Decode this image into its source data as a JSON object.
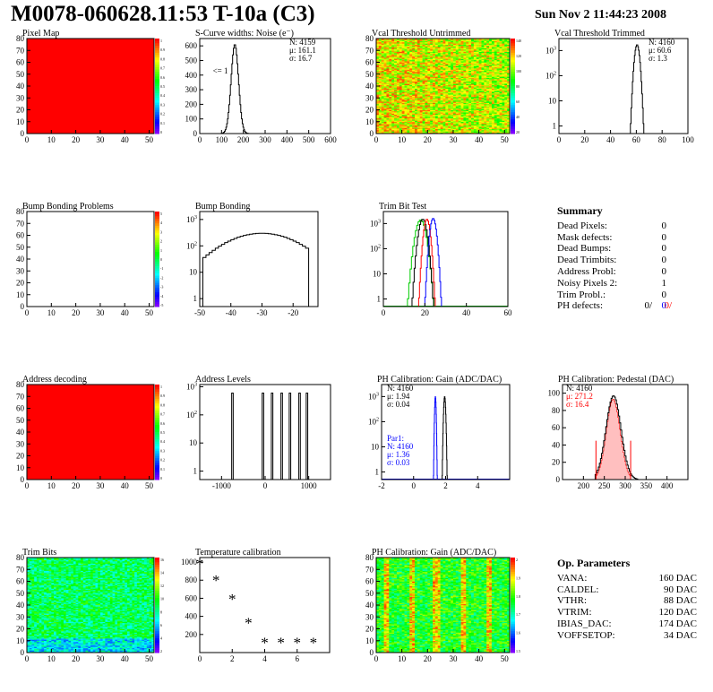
{
  "header": {
    "title": "M0078-060628.11:53 T-10a (C3)",
    "date": "Sun Nov  2 11:44:23 2008"
  },
  "colors": {
    "red": "#ff0000",
    "blue": "#0000ff",
    "green": "#00cc00",
    "black": "#000000"
  },
  "summary": {
    "title": "Summary",
    "rows": [
      {
        "label": "Dead Pixels:",
        "value": "0"
      },
      {
        "label": "Mask defects:",
        "value": "0"
      },
      {
        "label": "Dead Bumps:",
        "value": "0"
      },
      {
        "label": "Dead Trimbits:",
        "value": "0"
      },
      {
        "label": "Address Probl:",
        "value": "0"
      },
      {
        "label": "Noisy Pixels 2:",
        "value": "1"
      },
      {
        "label": "Trim Probl.:",
        "value": "0"
      }
    ],
    "ph": {
      "label": "PH defects:",
      "v1": "0/",
      "v2": "0/",
      "v3": "0"
    }
  },
  "op_params": {
    "title": "Op. Parameters",
    "rows": [
      {
        "label": "VANA:",
        "value": "160 DAC"
      },
      {
        "label": "CALDEL:",
        "value": "90 DAC"
      },
      {
        "label": "VTHR:",
        "value": "88 DAC"
      },
      {
        "label": "VTRIM:",
        "value": "120 DAC"
      },
      {
        "label": "IBIAS_DAC:",
        "value": "174 DAC"
      },
      {
        "label": "VOFFSETOP:",
        "value": "34 DAC"
      }
    ]
  },
  "chart_data": [
    {
      "id": "pixel-map",
      "type": "heatmap",
      "title": "Pixel Map",
      "xlim": [
        0,
        52
      ],
      "ylim": [
        0,
        80
      ],
      "fill": "uniform-red",
      "xticks": [
        0,
        10,
        20,
        30,
        40,
        50
      ],
      "yticks": [
        0,
        10,
        20,
        30,
        40,
        50,
        60,
        70,
        80
      ],
      "zticks": [
        "1",
        "0.9",
        "0.8",
        "0.7",
        "0.6",
        "0.5",
        "0.4",
        "0.3",
        "0.2",
        "0.1",
        "0"
      ],
      "palette": "rainbow"
    },
    {
      "id": "scurve",
      "type": "histogram",
      "title": "S-Curve widths: Noise (e⁻)",
      "xlim": [
        0,
        600
      ],
      "ylim": [
        0,
        650
      ],
      "xticks": [
        0,
        100,
        200,
        300,
        400,
        500,
        600
      ],
      "yticks": [
        0,
        100,
        200,
        300,
        400,
        500,
        600
      ],
      "curves": [
        {
          "color": "black",
          "shape": "gauss",
          "mean": 161,
          "sigma": 17,
          "peak": 610
        }
      ],
      "stats": [
        {
          "text": "N: 4159"
        },
        {
          "text": "μ: 161.1"
        },
        {
          "text": "σ: 16.7"
        }
      ],
      "annotations": [
        {
          "text": "<= 1",
          "x": 60,
          "y": 410
        }
      ]
    },
    {
      "id": "vcal-untrimmed",
      "type": "heatmap",
      "title": "Vcal Threshold Untrimmed",
      "xlim": [
        0,
        52
      ],
      "ylim": [
        0,
        80
      ],
      "fill": "noisy-orange",
      "xticks": [
        0,
        10,
        20,
        30,
        40,
        50
      ],
      "yticks": [
        0,
        10,
        20,
        30,
        40,
        50,
        60,
        70,
        80
      ],
      "zticks": [
        "140",
        "120",
        "100",
        "80",
        "60",
        "40",
        "20"
      ],
      "palette": "rainbow"
    },
    {
      "id": "vcal-trimmed",
      "type": "histogram",
      "log": true,
      "title": "Vcal Threshold Trimmed",
      "xlim": [
        0,
        100
      ],
      "ylim": [
        0.5,
        3000
      ],
      "xticks": [
        0,
        20,
        40,
        60,
        80,
        100
      ],
      "yticks": [
        1,
        10,
        100,
        1000
      ],
      "curves": [
        {
          "color": "black",
          "shape": "gauss",
          "mean": 60.6,
          "sigma": 1.3,
          "peak": 1700
        }
      ],
      "stats": [
        {
          "text": "N: 4160"
        },
        {
          "text": "μ: 60.6"
        },
        {
          "text": "σ:  1.3"
        }
      ]
    },
    {
      "id": "bump-problems",
      "type": "heatmap",
      "title": "Bump Bonding Problems",
      "xlim": [
        0,
        52
      ],
      "ylim": [
        0,
        80
      ],
      "fill": "empty",
      "xticks": [
        0,
        10,
        20,
        30,
        40,
        50
      ],
      "yticks": [
        0,
        10,
        20,
        30,
        40,
        50,
        60,
        70,
        80
      ],
      "zticks": [
        "5",
        "4",
        "3",
        "2",
        "1",
        "0",
        "-1",
        "-2",
        "-3",
        "-4",
        "-5"
      ],
      "palette": "rainbow"
    },
    {
      "id": "bump-bonding",
      "type": "histogram",
      "log": true,
      "title": "Bump Bonding",
      "xlim": [
        -50,
        -12
      ],
      "ylim": [
        0.5,
        2000
      ],
      "xticks": [
        -50,
        -40,
        -30,
        -20
      ],
      "yticks": [
        1,
        10,
        100,
        1000
      ],
      "curves": [
        {
          "color": "black",
          "shape": "bump",
          "mean": -30,
          "sigma": 9,
          "peak": 300,
          "lo": -49,
          "hi": -15
        }
      ]
    },
    {
      "id": "trim-bit",
      "type": "histogram",
      "log": true,
      "title": "Trim Bit Test",
      "xlim": [
        0,
        60
      ],
      "ylim": [
        0.5,
        3000
      ],
      "xticks": [
        0,
        20,
        40,
        60
      ],
      "yticks": [
        1,
        10,
        100,
        1000
      ],
      "curves": [
        {
          "color": "green",
          "shape": "gauss",
          "mean": 18,
          "sigma": 1.6,
          "peak": 1400,
          "baseline": true
        },
        {
          "color": "black",
          "shape": "gauss",
          "mean": 19,
          "sigma": 1.3,
          "peak": 1500
        },
        {
          "color": "red",
          "shape": "gauss",
          "mean": 21,
          "sigma": 1.0,
          "peak": 1500
        },
        {
          "color": "blue",
          "shape": "gauss",
          "mean": 24,
          "sigma": 1.0,
          "peak": 1600
        }
      ]
    },
    {
      "id": "address-decoding",
      "type": "heatmap",
      "title": "Address decoding",
      "xlim": [
        0,
        52
      ],
      "ylim": [
        0,
        80
      ],
      "fill": "uniform-red",
      "xticks": [
        0,
        10,
        20,
        30,
        40,
        50
      ],
      "yticks": [
        0,
        10,
        20,
        30,
        40,
        50,
        60,
        70,
        80
      ],
      "zticks": [
        "1",
        "0.9",
        "0.8",
        "0.7",
        "0.6",
        "0.5",
        "0.4",
        "0.3",
        "0.2",
        "0.1",
        "0"
      ],
      "palette": "rainbow"
    },
    {
      "id": "address-levels",
      "type": "histogram",
      "log": true,
      "title": "Address Levels",
      "xlim": [
        -1500,
        1500
      ],
      "ylim": [
        0.5,
        1200
      ],
      "xticks": [
        -1000,
        0,
        1000
      ],
      "yticks": [
        1,
        10,
        100,
        1000
      ],
      "curves": [
        {
          "color": "black",
          "shape": "spikes",
          "peaks": [
            -750,
            -50,
            160,
            380,
            570,
            790,
            960
          ],
          "height": 600,
          "width": 35
        }
      ]
    },
    {
      "id": "ph-gain",
      "type": "histogram",
      "log": true,
      "title": "PH Calibration: Gain (ADC/DAC)",
      "xlim": [
        -2,
        6
      ],
      "ylim": [
        0.5,
        3000
      ],
      "xticks": [
        -2,
        0,
        2,
        4
      ],
      "yticks": [
        1,
        10,
        100,
        1000
      ],
      "curves": [
        {
          "color": "blue",
          "shape": "gauss",
          "mean": 1.36,
          "sigma": 0.03,
          "peak": 1000,
          "baseline": true
        },
        {
          "color": "black",
          "shape": "gauss",
          "mean": 1.94,
          "sigma": 0.04,
          "peak": 1000
        }
      ],
      "stats": [
        {
          "text": "N: 4160"
        },
        {
          "text": "μ: 1.94"
        },
        {
          "text": "σ: 0.04"
        }
      ],
      "stats2": [
        {
          "text": "Par1:"
        },
        {
          "text": "N: 4160"
        },
        {
          "text": "μ: 1.36"
        },
        {
          "text": "σ: 0.03"
        }
      ]
    },
    {
      "id": "ph-pedestal",
      "type": "histogram",
      "title": "PH Calibration: Pedestal (DAC)",
      "xlim": [
        150,
        450
      ],
      "ylim": [
        0,
        110
      ],
      "xticks": [
        200,
        250,
        300,
        350,
        400
      ],
      "yticks": [
        0,
        20,
        40,
        60,
        80,
        100
      ],
      "curves": [
        {
          "color": "red",
          "shape": "gauss-hatched",
          "mean": 271.2,
          "sigma": 16.4,
          "peak": 93,
          "cut": [
            230,
            313
          ]
        },
        {
          "color": "black",
          "shape": "gauss",
          "mean": 272,
          "sigma": 18,
          "peak": 97,
          "lo": 228,
          "hi": 330
        }
      ],
      "markers": [
        {
          "x": 230,
          "h": 45
        },
        {
          "x": 313,
          "h": 45
        }
      ],
      "stats": [
        {
          "text": "N: 4160",
          "color": "black"
        },
        {
          "text": "μ: 271.2",
          "color": "red"
        },
        {
          "text": "σ: 16.4",
          "color": "red"
        }
      ]
    },
    {
      "id": "trim-bits",
      "type": "heatmap",
      "title": "Trim Bits",
      "xlim": [
        0,
        52
      ],
      "ylim": [
        0,
        80
      ],
      "fill": "noisy-green",
      "xticks": [
        0,
        10,
        20,
        30,
        40,
        50
      ],
      "yticks": [
        0,
        10,
        20,
        30,
        40,
        50,
        60,
        70,
        80
      ],
      "zticks": [
        "16",
        "14",
        "12",
        "10",
        "8",
        "6",
        "4",
        "2"
      ],
      "palette": "rainbow"
    },
    {
      "id": "temp-calib",
      "type": "scatter",
      "title": "Temperature calibration",
      "xlim": [
        0,
        8
      ],
      "ylim": [
        0,
        1050
      ],
      "xticks": [
        0,
        2,
        4,
        6
      ],
      "yticks": [
        200,
        400,
        600,
        800,
        1000
      ],
      "points": [
        [
          0,
          975
        ],
        [
          1,
          790
        ],
        [
          2,
          585
        ],
        [
          3,
          320
        ],
        [
          4,
          105
        ],
        [
          5,
          105
        ],
        [
          6,
          105
        ],
        [
          7,
          105
        ]
      ]
    },
    {
      "id": "ph-gain-map",
      "type": "heatmap",
      "title": "PH Calibration: Gain (ADC/DAC)",
      "xlim": [
        0,
        52
      ],
      "ylim": [
        0,
        80
      ],
      "fill": "noisy-gain",
      "xticks": [
        0,
        10,
        20,
        30,
        40,
        50
      ],
      "yticks": [
        0,
        10,
        20,
        30,
        40,
        50,
        60,
        70,
        80
      ],
      "zticks": [
        "2",
        "1.9",
        "1.8",
        "1.7",
        "1.6",
        "1.5"
      ],
      "palette": "rainbow"
    }
  ]
}
